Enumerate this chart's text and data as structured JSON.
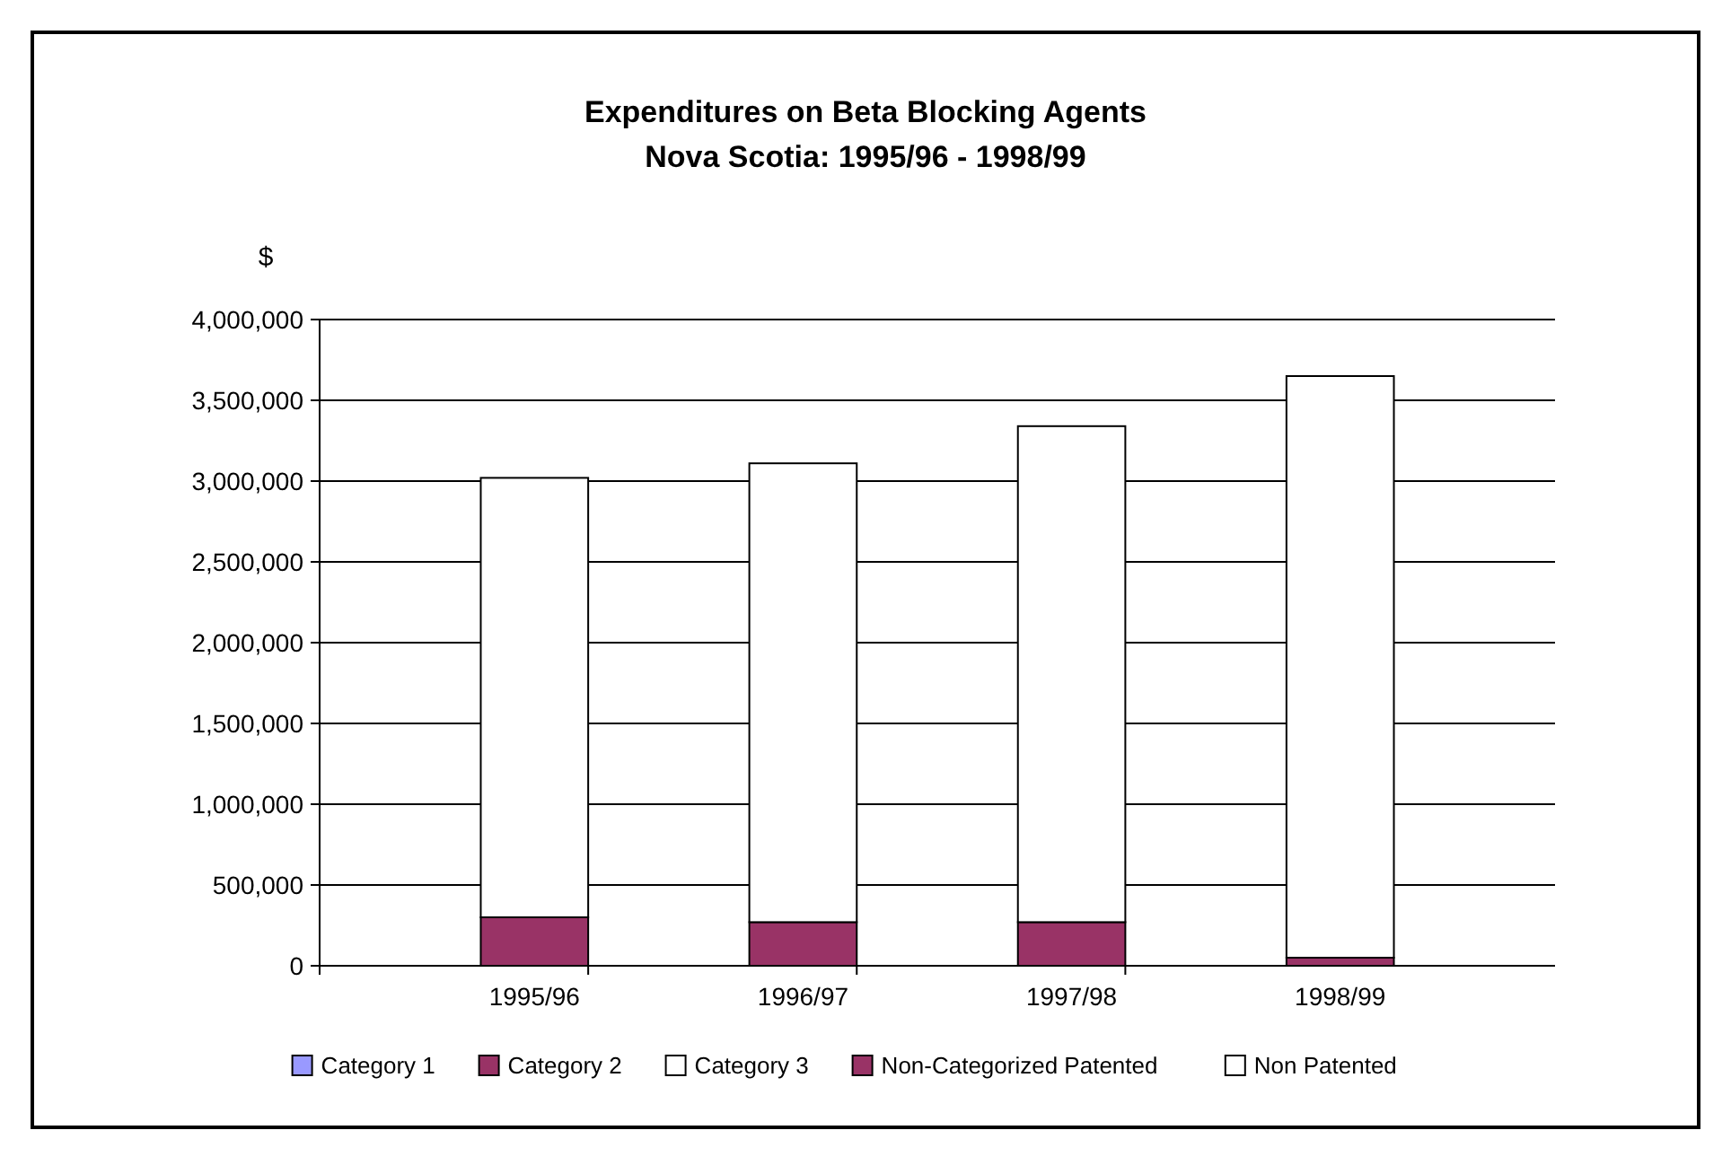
{
  "chart_data": {
    "type": "bar",
    "title": "Expenditures on Beta Blocking Agents",
    "subtitle": "Nova Scotia: 1995/96 - 1998/99",
    "ylabel": "$",
    "categories": [
      "1995/96",
      "1996/97",
      "1997/98",
      "1998/99"
    ],
    "series": [
      {
        "name": "Category 1",
        "color": "#9999ff",
        "values": [
          0,
          0,
          0,
          0
        ]
      },
      {
        "name": "Category 2",
        "color": "#993366",
        "values": [
          0,
          0,
          0,
          0
        ]
      },
      {
        "name": "Category 3",
        "color": "#ffffff",
        "values": [
          0,
          0,
          0,
          0
        ]
      },
      {
        "name": "Non-Categorized Patented",
        "color": "#993366",
        "values": [
          300000,
          270000,
          270000,
          50000
        ]
      },
      {
        "name": "Non Patented",
        "color": "#ffffff",
        "values": [
          2720000,
          2840000,
          3070000,
          3600000
        ]
      }
    ],
    "stacked": true,
    "ylim": [
      0,
      4000000
    ],
    "yticks": [
      {
        "value": 0,
        "label": "0"
      },
      {
        "value": 500000,
        "label": "500,000"
      },
      {
        "value": 1000000,
        "label": "1,000,000"
      },
      {
        "value": 1500000,
        "label": "1,500,000"
      },
      {
        "value": 2000000,
        "label": "2,000,000"
      },
      {
        "value": 2500000,
        "label": "2,500,000"
      },
      {
        "value": 3000000,
        "label": "3,000,000"
      },
      {
        "value": 3500000,
        "label": "3,500,000"
      },
      {
        "value": 4000000,
        "label": "4,000,000"
      }
    ],
    "grid": "y",
    "legend": "bottom"
  }
}
